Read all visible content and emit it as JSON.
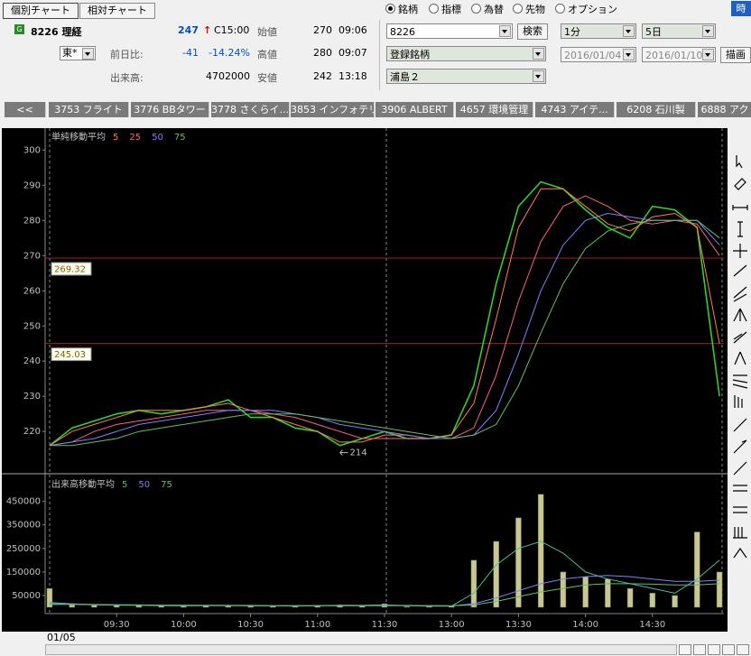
{
  "header": {
    "chart_buttons": [
      "個別チャート",
      "相対チャート"
    ],
    "icon": "G",
    "code_name": "8226 理経",
    "price": 247,
    "arrow": "↑",
    "time": "C15:00",
    "market": "東*",
    "change_label": "前日比:",
    "change": -41,
    "change_pct": "-14.24%",
    "volume_label": "出来高:",
    "volume": 4702000,
    "ohlc": [
      {
        "label": "始値",
        "price": 270,
        "time": "09:06"
      },
      {
        "label": "高値",
        "price": 280,
        "time": "09:07"
      },
      {
        "label": "安値",
        "price": 242,
        "time": "13:18"
      }
    ],
    "radios": [
      "銘柄",
      "指標",
      "為替",
      "先物",
      "オプション"
    ],
    "code_input": "8226",
    "search": "検索",
    "list": "登録銘柄",
    "group": "浦島２",
    "interval": "1分",
    "span": "5日",
    "date_from": "2016/01/04",
    "date_to": "2016/01/10",
    "draw": "描画",
    "corner": "時"
  },
  "tabs": [
    "<<",
    "3753 フライト",
    "3776 BBタワー",
    "3778 さくらイ...",
    "3853 インフォテリ",
    "3906 ALBERT",
    "4657 環境管理",
    "4743 アイテ...",
    "6208 石川製",
    "6888 アク"
  ],
  "date": "01/05",
  "chart_data": [
    {
      "type": "line",
      "title": "単純移動平均",
      "xlim": [
        -2,
        302
      ],
      "ylim": [
        208.5,
        306
      ],
      "yticks": [
        220,
        230,
        240,
        250,
        260,
        270,
        280,
        290,
        300
      ],
      "x": [
        0,
        10,
        20,
        30,
        40,
        50,
        60,
        70,
        80,
        90,
        100,
        110,
        120,
        130,
        140,
        150,
        160,
        170,
        180,
        190,
        200,
        210,
        220,
        230,
        240,
        250,
        260,
        270,
        280,
        290,
        300
      ],
      "series": [
        {
          "color": "#30d030",
          "values": [
            216,
            221,
            223,
            225,
            226,
            225,
            226,
            227,
            229,
            224,
            224,
            221,
            220,
            216,
            218,
            220,
            218,
            218,
            219,
            233,
            262,
            284,
            291,
            289,
            283,
            278,
            275,
            284,
            283,
            278,
            230
          ]
        },
        {
          "name": "5",
          "color": "#ff8040",
          "values": [
            216,
            220,
            222,
            224,
            226,
            226,
            226,
            227,
            228,
            226,
            224,
            222,
            220,
            217,
            217,
            219,
            219,
            218,
            219,
            228,
            252,
            278,
            289,
            289,
            284,
            279,
            277,
            281,
            282,
            278,
            245
          ]
        },
        {
          "name": "25",
          "color": "#ff6080",
          "values": [
            216,
            217,
            220,
            222,
            223,
            224,
            225,
            226,
            226,
            226,
            225,
            224,
            222,
            220,
            218,
            218,
            218,
            218,
            218,
            221,
            236,
            257,
            274,
            284,
            287,
            284,
            280,
            279,
            280,
            279,
            270
          ]
        },
        {
          "name": "50",
          "color": "#8080ff",
          "values": [
            216,
            217,
            218,
            220,
            222,
            223,
            224,
            225,
            226,
            226,
            226,
            225,
            224,
            222,
            221,
            220,
            219,
            218,
            218,
            219,
            226,
            242,
            260,
            273,
            280,
            282,
            281,
            280,
            280,
            280,
            273
          ]
        },
        {
          "name": "75",
          "color": "#60c060",
          "values": [
            216,
            216,
            217,
            218,
            220,
            221,
            222,
            223,
            224,
            225,
            225,
            225,
            224,
            223,
            222,
            221,
            220,
            219,
            218,
            219,
            222,
            233,
            248,
            262,
            272,
            277,
            279,
            280,
            280,
            280,
            275
          ]
        }
      ],
      "hlines": [
        269.32,
        245.03
      ],
      "hline_color": "#a02020",
      "annotation": {
        "text": "214",
        "x": 130,
        "y": 214
      }
    },
    {
      "type": "bar",
      "title": "出来高移動平均",
      "xlim": [
        -2,
        302
      ],
      "ylim": [
        0,
        556000
      ],
      "yticks": [
        50000,
        150000,
        250000,
        350000,
        450000
      ],
      "xticks": [
        {
          "value": 30,
          "label": "09:30"
        },
        {
          "value": 60,
          "label": "10:00"
        },
        {
          "value": 90,
          "label": "10:30"
        },
        {
          "value": 120,
          "label": "11:00"
        },
        {
          "value": 150,
          "label": "11:30"
        },
        {
          "value": 180,
          "label": "13:00"
        },
        {
          "value": 210,
          "label": "13:30"
        },
        {
          "value": 240,
          "label": "14:00"
        },
        {
          "value": 270,
          "label": "14:30"
        }
      ],
      "x": [
        0,
        10,
        20,
        30,
        40,
        50,
        60,
        70,
        80,
        90,
        100,
        110,
        120,
        130,
        140,
        150,
        160,
        170,
        180,
        190,
        200,
        210,
        220,
        230,
        240,
        250,
        260,
        270,
        280,
        290,
        300
      ],
      "values": [
        80000,
        10000,
        8000,
        8000,
        8000,
        6000,
        5000,
        8000,
        6000,
        6000,
        5000,
        5000,
        8000,
        10000,
        6000,
        15000,
        3000,
        4000,
        5000,
        200000,
        280000,
        380000,
        480000,
        150000,
        130000,
        120000,
        80000,
        60000,
        50000,
        320000,
        150000
      ],
      "color": "#c8c890",
      "series": [
        {
          "name": "5",
          "color": "#40c0a0",
          "values": [
            20000,
            15000,
            10000,
            9000,
            8000,
            7000,
            6000,
            7000,
            7000,
            6000,
            6000,
            5000,
            7000,
            9000,
            8000,
            10000,
            7000,
            5000,
            5000,
            60000,
            180000,
            250000,
            280000,
            230000,
            150000,
            120000,
            100000,
            80000,
            60000,
            120000,
            200000
          ]
        },
        {
          "name": "50",
          "color": "#8080ff",
          "values": [
            15000,
            14000,
            12000,
            11000,
            10000,
            9000,
            8000,
            8000,
            8000,
            7000,
            7000,
            7000,
            7000,
            7000,
            7000,
            8000,
            8000,
            7000,
            6000,
            15000,
            40000,
            70000,
            100000,
            120000,
            130000,
            135000,
            130000,
            120000,
            110000,
            110000,
            115000
          ]
        },
        {
          "name": "75",
          "color": "#60c060",
          "values": [
            12000,
            12000,
            11000,
            10000,
            10000,
            9000,
            9000,
            8000,
            8000,
            8000,
            7000,
            7000,
            7000,
            7000,
            7000,
            7000,
            7000,
            7000,
            6000,
            10000,
            25000,
            45000,
            65000,
            80000,
            95000,
            100000,
            100000,
            98000,
            95000,
            95000,
            100000
          ]
        }
      ]
    }
  ]
}
